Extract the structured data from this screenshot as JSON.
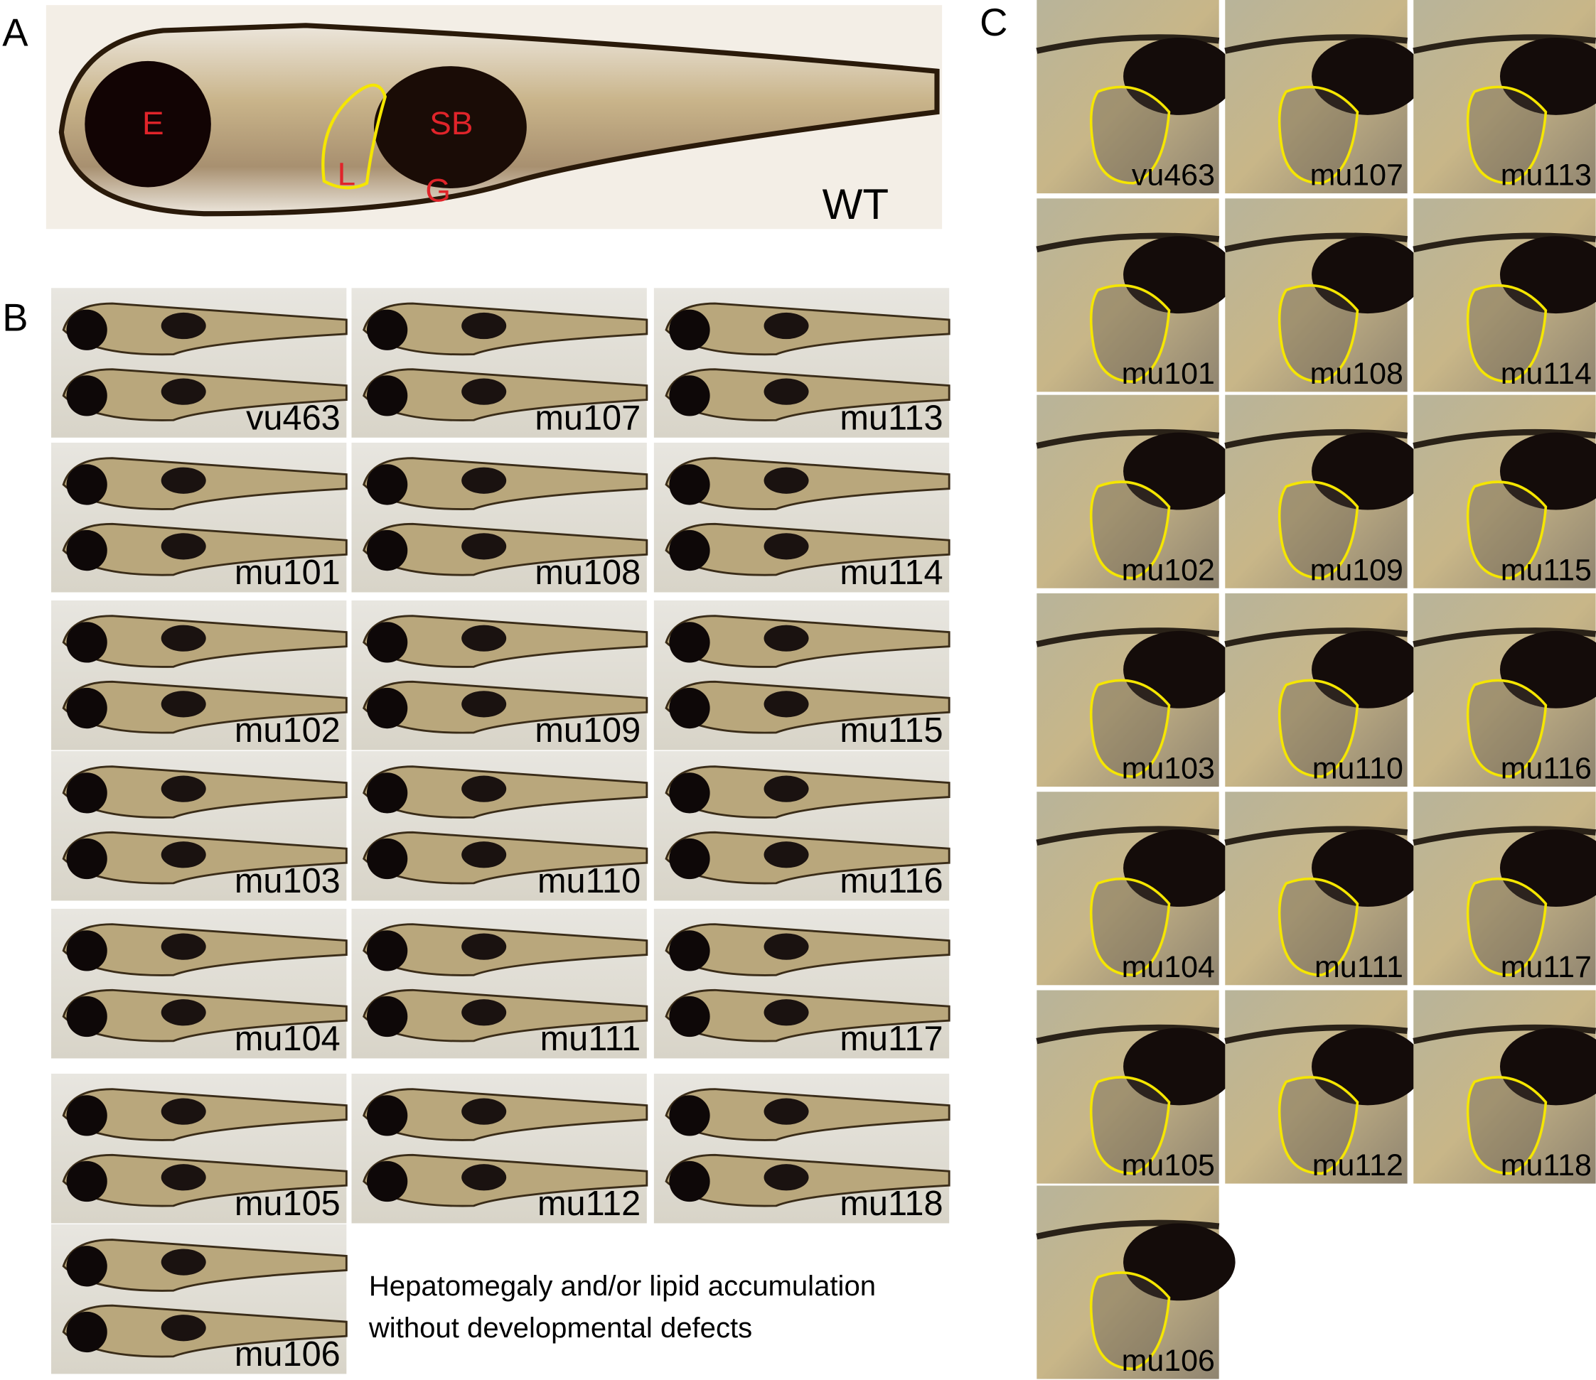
{
  "panels": {
    "A": {
      "label": "A",
      "structures": [
        "E",
        "SB",
        "L",
        "G"
      ],
      "genotype": "WT"
    },
    "B": {
      "label": "B",
      "items": [
        "vu463",
        "mu107",
        "mu113",
        "mu101",
        "mu108",
        "mu114",
        "mu102",
        "mu109",
        "mu115",
        "mu103",
        "mu110",
        "mu116",
        "mu104",
        "mu111",
        "mu117",
        "mu105",
        "mu112",
        "mu118",
        "mu106"
      ],
      "caption": [
        "Hepatomegaly and/or lipid accumulation",
        "without developmental defects"
      ]
    },
    "C": {
      "label": "C",
      "items": [
        "vu463",
        "mu107",
        "mu113",
        "mu101",
        "mu108",
        "mu114",
        "mu102",
        "mu109",
        "mu115",
        "mu103",
        "mu110",
        "mu116",
        "mu104",
        "mu111",
        "mu117",
        "mu105",
        "mu112",
        "mu118",
        "mu106"
      ]
    }
  }
}
